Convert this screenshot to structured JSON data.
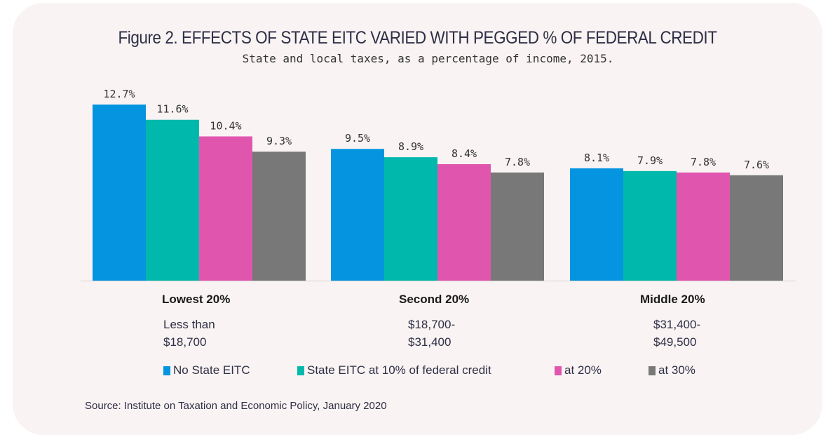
{
  "chart_data": {
    "type": "bar",
    "title": "Figure 2.  EFFECTS OF STATE EITC VARIED WITH PEGGED % OF FEDERAL CREDIT",
    "subtitle": "State and local taxes, as a percentage of income, 2015.",
    "categories": [
      "Lowest 20%",
      "Second 20%",
      "Middle 20%"
    ],
    "category_ranges": [
      [
        "Less than",
        "$18,700"
      ],
      [
        "$18,700-",
        "$31,400"
      ],
      [
        "$31,400-",
        "$49,500"
      ]
    ],
    "series": [
      {
        "name": "No State EITC",
        "color": "#0494e0",
        "values": [
          12.7,
          9.5,
          8.1
        ]
      },
      {
        "name": "State EITC at 10% of federal credit",
        "color": "#00b8ac",
        "values": [
          11.6,
          8.9,
          7.9
        ]
      },
      {
        "name": "at 20%",
        "color": "#e056ae",
        "values": [
          10.4,
          8.4,
          7.8
        ]
      },
      {
        "name": "at 30%",
        "color": "#787878",
        "values": [
          9.3,
          7.8,
          7.6
        ]
      }
    ],
    "value_suffix": "%",
    "ylim": [
      0,
      12.7
    ],
    "grid": false,
    "legend_placement": "bottom",
    "source": "Source: Institute on Taxation and Economic Policy, January 2020"
  }
}
